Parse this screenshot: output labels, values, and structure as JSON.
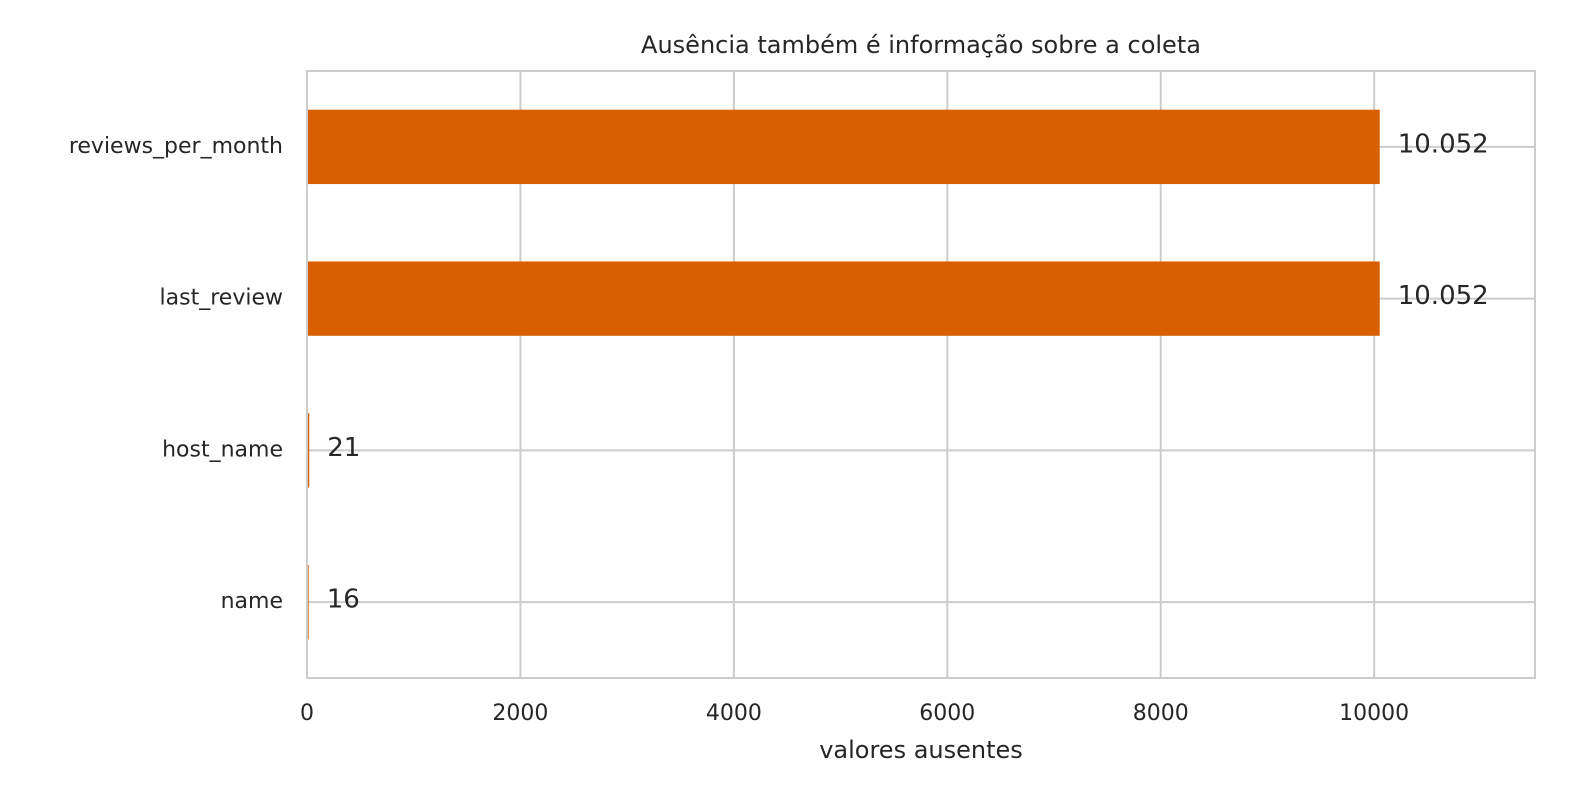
{
  "chart_data": {
    "type": "barh",
    "title": "Ausência também é informação sobre a coleta",
    "xlabel": "valores ausentes",
    "categories": [
      "reviews_per_month",
      "last_review",
      "host_name",
      "name"
    ],
    "values": [
      10052,
      10052,
      21,
      16
    ],
    "value_labels": [
      "10.052",
      "10.052",
      "21",
      "16"
    ],
    "color": "#d95f02",
    "xlim": [
      0,
      11507
    ],
    "xticks": [
      0,
      2000,
      4000,
      6000,
      8000,
      10000
    ],
    "grid": true
  }
}
